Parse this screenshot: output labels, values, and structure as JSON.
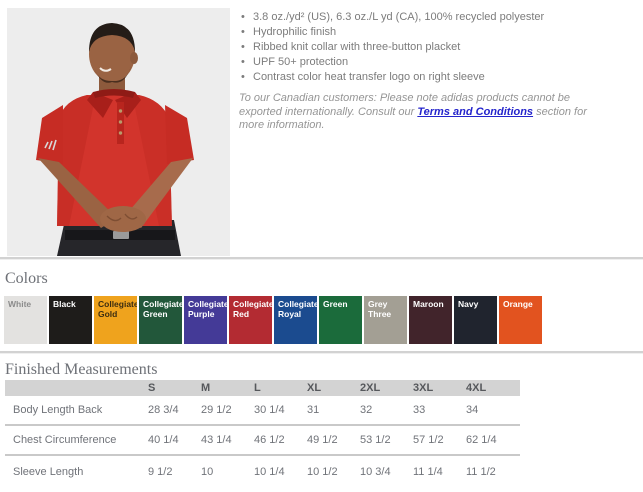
{
  "product": {
    "photo_alt": "Model wearing red adidas polo shirt",
    "shirt_color": "#d2342c",
    "bullets": [
      "3.8 oz./yd² (US), 6.3 oz./L yd (CA), 100% recycled polyester",
      "Hydrophilic finish",
      "Ribbed knit collar with three-button placket",
      "UPF 50+ protection",
      "Contrast color heat transfer logo on right sleeve"
    ],
    "note": {
      "pre": "To our Canadian customers: Please note adidas products cannot be exported internationally. Consult our ",
      "link": "Terms and Conditions",
      "post": " section for more information.",
      "link_color": "#2424cc"
    }
  },
  "colors_section": {
    "title": "Colors",
    "swatches": [
      {
        "label": "White",
        "bg": "#e3e2e0",
        "text": "#8b8b8b"
      },
      {
        "label": "Black",
        "bg": "#1e1c1a",
        "text": "#ffffff"
      },
      {
        "label": "Collegiate Gold",
        "bg": "#efa31d",
        "text": "#3b2d11"
      },
      {
        "label": "Collegiate Green",
        "bg": "#22573a",
        "text": "#ffffff"
      },
      {
        "label": "Collegiate Purple",
        "bg": "#443a97",
        "text": "#ffffff"
      },
      {
        "label": "Collegiate Red",
        "bg": "#b32b32",
        "text": "#ffffff"
      },
      {
        "label": "Collegiate Royal",
        "bg": "#1b4b8f",
        "text": "#ffffff"
      },
      {
        "label": "Green",
        "bg": "#1b6b3b",
        "text": "#ffffff"
      },
      {
        "label": "Grey Three",
        "bg": "#a39f94",
        "text": "#ffffff"
      },
      {
        "label": "Maroon",
        "bg": "#41242b",
        "text": "#ffffff"
      },
      {
        "label": "Navy",
        "bg": "#20242e",
        "text": "#ffffff"
      },
      {
        "label": "Orange",
        "bg": "#e2531f",
        "text": "#ffffff"
      }
    ]
  },
  "measurements": {
    "title": "Finished Measurements",
    "columns": [
      "S",
      "M",
      "L",
      "XL",
      "2XL",
      "3XL",
      "4XL"
    ],
    "rows": [
      {
        "label": "Body Length Back",
        "values": [
          "28 3/4",
          "29 1/2",
          "30 1/4",
          "31",
          "32",
          "33",
          "34"
        ]
      },
      {
        "label": "Chest Circumference",
        "values": [
          "40 1/4",
          "43 1/4",
          "46 1/2",
          "49 1/2",
          "53 1/2",
          "57 1/2",
          "62 1/4"
        ]
      },
      {
        "label": "Sleeve Length",
        "values": [
          "9 1/2",
          "10",
          "10 1/4",
          "10 1/2",
          "10 3/4",
          "11 1/4",
          "11 1/2"
        ]
      }
    ]
  }
}
